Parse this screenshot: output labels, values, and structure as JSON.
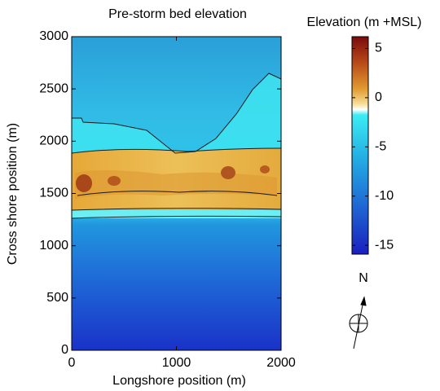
{
  "chart_data": {
    "type": "heatmap",
    "title": "Pre-storm bed elevation",
    "xlabel": "Longshore position (m)",
    "ylabel": "Cross shore position (m)",
    "xlim": [
      0,
      2000
    ],
    "ylim": [
      0,
      3000
    ],
    "xticks": [
      0,
      1000,
      2000
    ],
    "yticks": [
      0,
      500,
      1000,
      1500,
      2000,
      2500,
      3000
    ],
    "colorbar": {
      "label": "Elevation (m +MSL)",
      "clim": [
        -15.9,
        6.2
      ],
      "ticks": [
        5,
        0,
        -5,
        -10,
        -15
      ]
    },
    "north_label": "N"
  }
}
